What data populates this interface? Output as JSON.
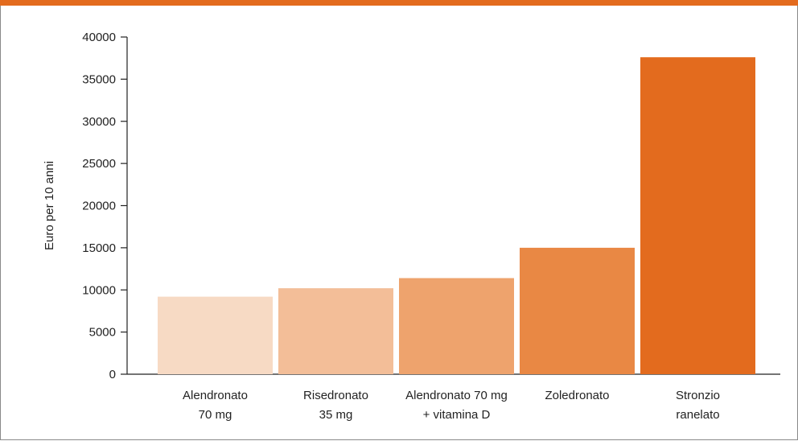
{
  "colors": {
    "top_bar": "#e36b1e",
    "bars": [
      "#f7dac4",
      "#f3be98",
      "#eea36d",
      "#e98844",
      "#e36b1e"
    ]
  },
  "chart_data": {
    "type": "bar",
    "categories": [
      [
        "Alendronato",
        "70 mg"
      ],
      [
        "Risedronato",
        "35 mg"
      ],
      [
        "Alendronato 70 mg",
        "+ vitamina D"
      ],
      [
        "Zoledronato"
      ],
      [
        "Stronzio",
        "ranelato"
      ]
    ],
    "values": [
      9200,
      10200,
      11400,
      15000,
      37600
    ],
    "ylabel": "Euro per 10 anni",
    "ylim": [
      0,
      40000
    ],
    "yticks": [
      0,
      5000,
      10000,
      15000,
      20000,
      25000,
      30000,
      35000,
      40000
    ],
    "grid": false,
    "legend": "none"
  }
}
